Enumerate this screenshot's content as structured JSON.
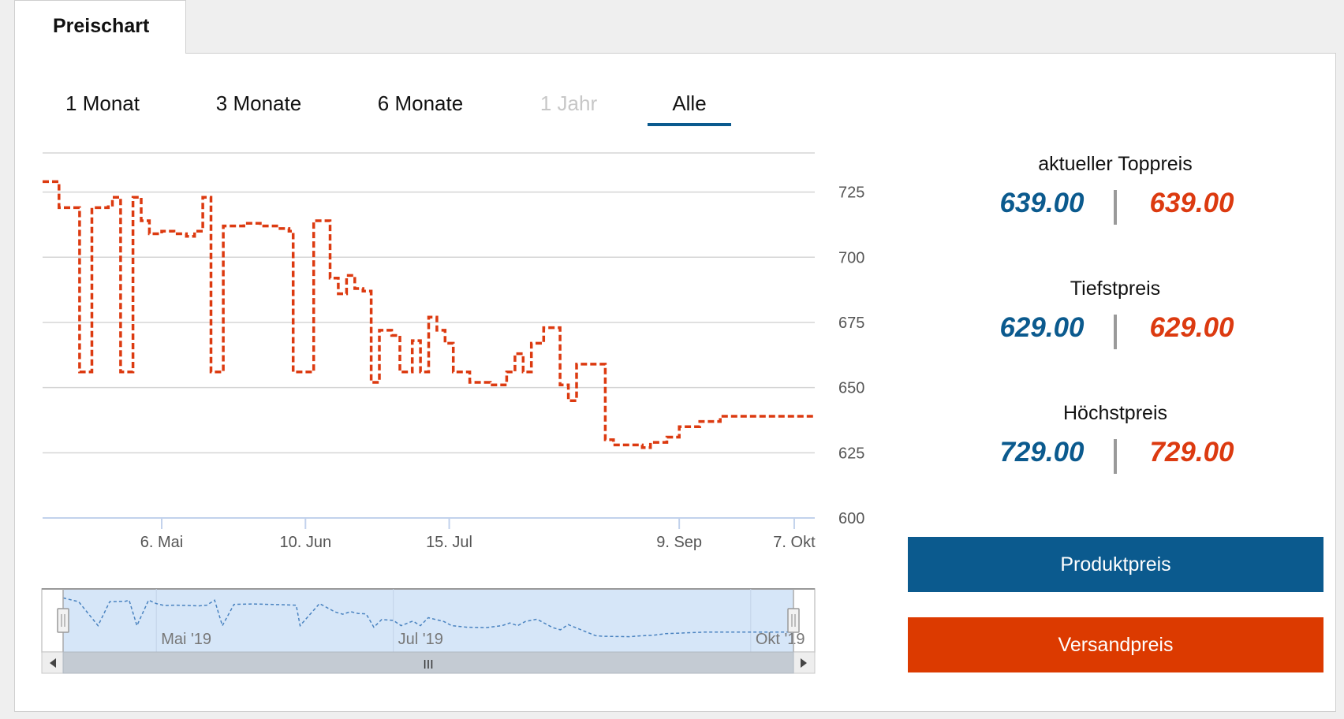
{
  "tab": {
    "label": "Preischart"
  },
  "ranges": [
    {
      "label": "1 Monat",
      "state": "normal"
    },
    {
      "label": "3 Monate",
      "state": "normal"
    },
    {
      "label": "6 Monate",
      "state": "normal"
    },
    {
      "label": "1 Jahr",
      "state": "disabled"
    },
    {
      "label": "Alle",
      "state": "active"
    }
  ],
  "stats": {
    "top": {
      "label": "aktueller Toppreis",
      "product": "639.00",
      "shipping": "639.00"
    },
    "low": {
      "label": "Tiefstpreis",
      "product": "629.00",
      "shipping": "629.00"
    },
    "high": {
      "label": "Höchstpreis",
      "product": "729.00",
      "shipping": "729.00"
    }
  },
  "buttons": {
    "product": "Produktpreis",
    "shipping": "Versandpreis"
  },
  "colors": {
    "blue": "#0b5a8e",
    "red": "#dc3a10",
    "navigator_fill": "#d6e6f8",
    "navigator_line": "#4a83c0"
  },
  "chart_data": {
    "type": "line",
    "title": "",
    "xlabel": "",
    "ylabel": "",
    "ylim": [
      600,
      740
    ],
    "xlim": [
      "2019-04-07",
      "2019-10-12"
    ],
    "y_axis_side": "right",
    "yticks": [
      600,
      625,
      650,
      675,
      700,
      725
    ],
    "xticks": [
      {
        "date": "2019-05-06",
        "label": "6. Mai"
      },
      {
        "date": "2019-06-10",
        "label": "10. Jun"
      },
      {
        "date": "2019-07-15",
        "label": "15. Jul"
      },
      {
        "date": "2019-09-09",
        "label": "9. Sep"
      },
      {
        "date": "2019-10-07",
        "label": "7. Okt"
      }
    ],
    "grid": true,
    "series": [
      {
        "line_style": "dashed-step",
        "points": [
          [
            "2019-04-07",
            729
          ],
          [
            "2019-04-11",
            719
          ],
          [
            "2019-04-16",
            656
          ],
          [
            "2019-04-19",
            719
          ],
          [
            "2019-04-23",
            720
          ],
          [
            "2019-04-24",
            723
          ],
          [
            "2019-04-26",
            656
          ],
          [
            "2019-04-29",
            723
          ],
          [
            "2019-05-01",
            714
          ],
          [
            "2019-05-03",
            709
          ],
          [
            "2019-05-06",
            710
          ],
          [
            "2019-05-09",
            709
          ],
          [
            "2019-05-12",
            708
          ],
          [
            "2019-05-14",
            710
          ],
          [
            "2019-05-16",
            723
          ],
          [
            "2019-05-18",
            656
          ],
          [
            "2019-05-21",
            712
          ],
          [
            "2019-05-26",
            713
          ],
          [
            "2019-05-30",
            712
          ],
          [
            "2019-06-03",
            711
          ],
          [
            "2019-06-06",
            710
          ],
          [
            "2019-06-07",
            656
          ],
          [
            "2019-06-12",
            714
          ],
          [
            "2019-06-16",
            692
          ],
          [
            "2019-06-18",
            686
          ],
          [
            "2019-06-20",
            693
          ],
          [
            "2019-06-22",
            688
          ],
          [
            "2019-06-24",
            687
          ],
          [
            "2019-06-26",
            652
          ],
          [
            "2019-06-28",
            672
          ],
          [
            "2019-07-01",
            670
          ],
          [
            "2019-07-03",
            656
          ],
          [
            "2019-07-06",
            668
          ],
          [
            "2019-07-08",
            656
          ],
          [
            "2019-07-10",
            677
          ],
          [
            "2019-07-12",
            672
          ],
          [
            "2019-07-14",
            667
          ],
          [
            "2019-07-16",
            656
          ],
          [
            "2019-07-20",
            652
          ],
          [
            "2019-07-25",
            651
          ],
          [
            "2019-07-29",
            656
          ],
          [
            "2019-07-31",
            663
          ],
          [
            "2019-08-02",
            656
          ],
          [
            "2019-08-04",
            667
          ],
          [
            "2019-08-07",
            673
          ],
          [
            "2019-08-11",
            651
          ],
          [
            "2019-08-13",
            645
          ],
          [
            "2019-08-15",
            659
          ],
          [
            "2019-08-22",
            630
          ],
          [
            "2019-08-24",
            628
          ],
          [
            "2019-08-31",
            627
          ],
          [
            "2019-09-02",
            629
          ],
          [
            "2019-09-06",
            631
          ],
          [
            "2019-09-09",
            635
          ],
          [
            "2019-09-14",
            637
          ],
          [
            "2019-09-19",
            639
          ]
        ]
      }
    ],
    "navigator": {
      "labels": [
        {
          "date": "2019-05-01",
          "label": "Mai '19"
        },
        {
          "date": "2019-07-01",
          "label": "Jul '19"
        },
        {
          "date": "2019-10-01",
          "label": "Okt '19"
        }
      ],
      "scrollbar_grip": "III"
    }
  }
}
